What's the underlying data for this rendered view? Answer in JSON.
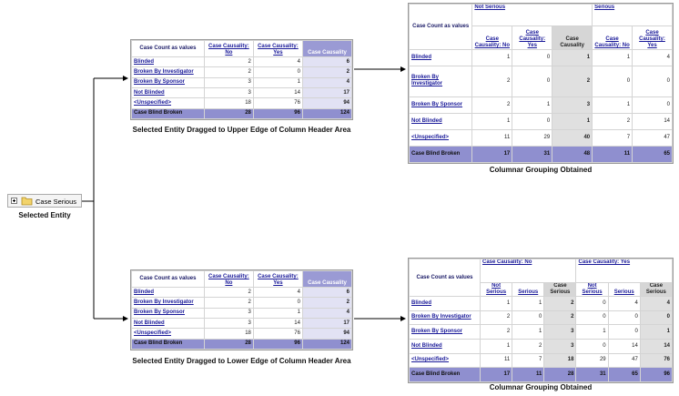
{
  "entity": {
    "label": "Case Serious",
    "caption": "Selected Entity"
  },
  "upper_source": {
    "corner": "Case Count as values",
    "columns": [
      "Case Causality: No",
      "Case Causality: Yes",
      "Case Causality"
    ],
    "rows": [
      {
        "label": "Blinded",
        "values": [
          2,
          4,
          6
        ]
      },
      {
        "label": "Broken By Investigator",
        "values": [
          2,
          0,
          2
        ]
      },
      {
        "label": "Broken By Sponsor",
        "values": [
          3,
          1,
          4
        ]
      },
      {
        "label": "Not Blinded",
        "values": [
          3,
          14,
          17
        ]
      },
      {
        "label": "<Unspecified>",
        "values": [
          18,
          76,
          94
        ]
      },
      {
        "label": "Case Blind Broken",
        "values": [
          28,
          96,
          124
        ]
      }
    ],
    "caption": "Selected Entity Dragged to Upper Edge of Column Header Area"
  },
  "lower_source": {
    "corner": "Case Count as values",
    "columns": [
      "Case Causality: No",
      "Case Causality: Yes",
      "Case Causality"
    ],
    "rows": [
      {
        "label": "Blinded",
        "values": [
          2,
          4,
          6
        ]
      },
      {
        "label": "Broken By Investigator",
        "values": [
          2,
          0,
          2
        ]
      },
      {
        "label": "Broken By Sponsor",
        "values": [
          3,
          1,
          4
        ]
      },
      {
        "label": "Not Blinded",
        "values": [
          3,
          14,
          17
        ]
      },
      {
        "label": "<Unspecified>",
        "values": [
          18,
          76,
          94
        ]
      },
      {
        "label": "Case Blind Broken",
        "values": [
          28,
          96,
          124
        ]
      }
    ],
    "caption": "Selected Entity Dragged to Lower Edge of Column Header Area"
  },
  "upper_result": {
    "corner": "Case Count as values",
    "groups": [
      "Not Serious",
      "Serious"
    ],
    "columns": [
      "Case Causality: No",
      "Case Causality: Yes",
      "Case Causality",
      "Case Causality: No",
      "Case Causality: Yes"
    ],
    "rows": [
      {
        "label": "Blinded",
        "values": [
          1,
          0,
          1,
          1,
          4
        ]
      },
      {
        "label": "Broken By Investigator",
        "values": [
          2,
          0,
          2,
          0,
          0
        ]
      },
      {
        "label": "Broken By Sponsor",
        "values": [
          2,
          1,
          3,
          1,
          0
        ]
      },
      {
        "label": "Not Blinded",
        "values": [
          1,
          0,
          1,
          2,
          14
        ]
      },
      {
        "label": "<Unspecified>",
        "values": [
          11,
          29,
          40,
          7,
          47
        ]
      },
      {
        "label": "Case Blind Broken",
        "values": [
          17,
          31,
          48,
          11,
          65
        ]
      }
    ],
    "caption": "Columnar Grouping Obtained"
  },
  "lower_result": {
    "corner": "Case Count as values",
    "groups": [
      "Case Causality: No",
      "Case Causality: Yes"
    ],
    "columns": [
      "Not Serious",
      "Serious",
      "Case Serious",
      "Not Serious",
      "Serious",
      "Case Serious"
    ],
    "rows": [
      {
        "label": "Blinded",
        "values": [
          1,
          1,
          2,
          0,
          4,
          4
        ]
      },
      {
        "label": "Broken By Investigator",
        "values": [
          2,
          0,
          2,
          0,
          0,
          0
        ]
      },
      {
        "label": "Broken By Sponsor",
        "values": [
          2,
          1,
          3,
          1,
          0,
          1
        ]
      },
      {
        "label": "Not Blinded",
        "values": [
          1,
          2,
          3,
          0,
          14,
          14
        ]
      },
      {
        "label": "<Unspecified>",
        "values": [
          11,
          7,
          18,
          29,
          47,
          76
        ]
      },
      {
        "label": "Case Blind Broken",
        "values": [
          17,
          11,
          28,
          31,
          65,
          96
        ]
      }
    ],
    "caption": "Columnar Grouping Obtained"
  }
}
